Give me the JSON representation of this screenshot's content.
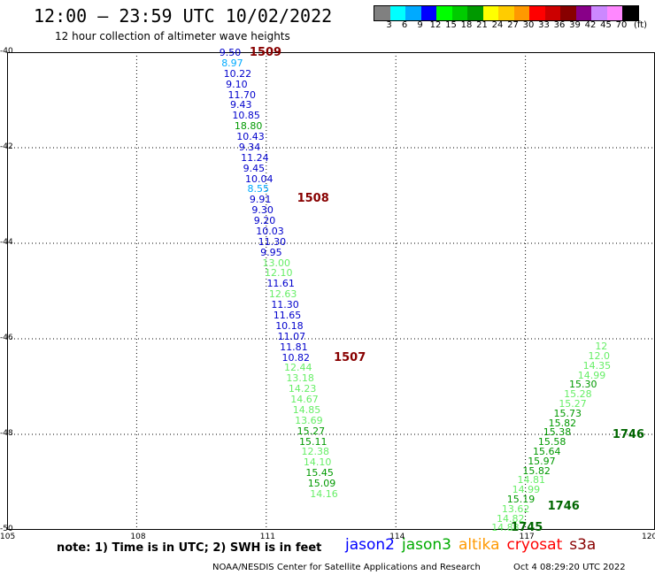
{
  "header": {
    "title": "12:00 — 23:59 UTC 10/02/2022",
    "subtitle": "12 hour collection of altimeter wave heights"
  },
  "legend": {
    "colors": [
      "#808080",
      "#00ffff",
      "#00aaff",
      "#0000ff",
      "#00ff00",
      "#00cc00",
      "#009900",
      "#ffff00",
      "#ffcc00",
      "#ff9900",
      "#ff0000",
      "#cc0000",
      "#880000",
      "#880088",
      "#cc88ff",
      "#ff88ff",
      "#000000"
    ],
    "labels": [
      "3",
      "6",
      "9",
      "12",
      "15",
      "18",
      "21",
      "24",
      "27",
      "30",
      "33",
      "36",
      "39",
      "42",
      "45",
      "70",
      "(ft)"
    ]
  },
  "map": {
    "lon_range": [
      105,
      120
    ],
    "lat_range": [
      -50,
      -40
    ],
    "lon_labels": [
      "105",
      "108",
      "111",
      "114",
      "117",
      "120"
    ],
    "lat_labels": [
      "-40",
      "-42",
      "-44",
      "-46",
      "-48",
      "-50"
    ]
  },
  "tracks": [
    {
      "pass_label": "1509",
      "pass_color": "#880000",
      "pass_lon": 110.9,
      "pass_lat": -40.0,
      "points": [
        {
          "v": "9.50",
          "lon": 110.2,
          "lat": -40.0,
          "c": "#0000cc"
        },
        {
          "v": "8.97",
          "lon": 110.25,
          "lat": -40.22,
          "c": "#00aaff"
        },
        {
          "v": "10.22",
          "lon": 110.3,
          "lat": -40.44,
          "c": "#0000cc"
        },
        {
          "v": "9.10",
          "lon": 110.35,
          "lat": -40.66,
          "c": "#0000cc"
        },
        {
          "v": "11.70",
          "lon": 110.4,
          "lat": -40.88,
          "c": "#0000cc"
        },
        {
          "v": "9.43",
          "lon": 110.45,
          "lat": -41.1,
          "c": "#0000cc"
        },
        {
          "v": "10.85",
          "lon": 110.5,
          "lat": -41.32,
          "c": "#0000cc"
        },
        {
          "v": "18.80",
          "lon": 110.55,
          "lat": -41.54,
          "c": "#009900"
        },
        {
          "v": "10.43",
          "lon": 110.6,
          "lat": -41.76,
          "c": "#0000cc"
        },
        {
          "v": "9.34",
          "lon": 110.65,
          "lat": -41.98,
          "c": "#0000cc"
        },
        {
          "v": "11.24",
          "lon": 110.7,
          "lat": -42.2,
          "c": "#0000cc"
        },
        {
          "v": "9.45",
          "lon": 110.75,
          "lat": -42.42,
          "c": "#0000cc"
        },
        {
          "v": "10.04",
          "lon": 110.8,
          "lat": -42.64,
          "c": "#0000cc"
        },
        {
          "v": "8.55",
          "lon": 110.85,
          "lat": -42.86,
          "c": "#00aaff"
        },
        {
          "v": "9.91",
          "lon": 110.9,
          "lat": -43.08,
          "c": "#0000cc"
        }
      ]
    },
    {
      "pass_label": "1508",
      "pass_color": "#880000",
      "pass_lon": 112.0,
      "pass_lat": -43.06,
      "points": [
        {
          "v": "9.30",
          "lon": 110.95,
          "lat": -43.3,
          "c": "#0000cc"
        },
        {
          "v": "9.20",
          "lon": 111.0,
          "lat": -43.52,
          "c": "#0000cc"
        },
        {
          "v": "10.03",
          "lon": 111.05,
          "lat": -43.74,
          "c": "#0000cc"
        },
        {
          "v": "11.30",
          "lon": 111.1,
          "lat": -43.96,
          "c": "#0000cc"
        },
        {
          "v": "9.95",
          "lon": 111.15,
          "lat": -44.18,
          "c": "#0000cc"
        },
        {
          "v": "13.00",
          "lon": 111.2,
          "lat": -44.4,
          "c": "#66ee66"
        },
        {
          "v": "12.10",
          "lon": 111.25,
          "lat": -44.62,
          "c": "#66ee66"
        },
        {
          "v": "11.61",
          "lon": 111.3,
          "lat": -44.84,
          "c": "#0000cc"
        },
        {
          "v": "12.63",
          "lon": 111.35,
          "lat": -45.06,
          "c": "#66ee66"
        },
        {
          "v": "11.30",
          "lon": 111.4,
          "lat": -45.28,
          "c": "#0000cc"
        },
        {
          "v": "11.65",
          "lon": 111.45,
          "lat": -45.5,
          "c": "#0000cc"
        },
        {
          "v": "10.18",
          "lon": 111.5,
          "lat": -45.72,
          "c": "#0000cc"
        },
        {
          "v": "11.07",
          "lon": 111.55,
          "lat": -45.94,
          "c": "#0000cc"
        },
        {
          "v": "11.81",
          "lon": 111.6,
          "lat": -46.16,
          "c": "#0000cc"
        },
        {
          "v": "10.82",
          "lon": 111.65,
          "lat": -46.38,
          "c": "#0000cc"
        }
      ]
    },
    {
      "pass_label": "1507",
      "pass_color": "#880000",
      "pass_lon": 112.85,
      "pass_lat": -46.38,
      "points": [
        {
          "v": "12.44",
          "lon": 111.7,
          "lat": -46.6,
          "c": "#66ee66"
        },
        {
          "v": "13.18",
          "lon": 111.75,
          "lat": -46.82,
          "c": "#66ee66"
        },
        {
          "v": "14.23",
          "lon": 111.8,
          "lat": -47.04,
          "c": "#66ee66"
        },
        {
          "v": "14.67",
          "lon": 111.85,
          "lat": -47.26,
          "c": "#66ee66"
        },
        {
          "v": "14.85",
          "lon": 111.9,
          "lat": -47.48,
          "c": "#66ee66"
        },
        {
          "v": "13.69",
          "lon": 111.95,
          "lat": -47.7,
          "c": "#66ee66"
        },
        {
          "v": "15.27",
          "lon": 112.0,
          "lat": -47.92,
          "c": "#009900"
        },
        {
          "v": "15.11",
          "lon": 112.05,
          "lat": -48.14,
          "c": "#009900"
        },
        {
          "v": "12.38",
          "lon": 112.1,
          "lat": -48.36,
          "c": "#66ee66"
        },
        {
          "v": "14.10",
          "lon": 112.15,
          "lat": -48.58,
          "c": "#66ee66"
        },
        {
          "v": "15.45",
          "lon": 112.2,
          "lat": -48.8,
          "c": "#009900"
        },
        {
          "v": "15.09",
          "lon": 112.25,
          "lat": -49.02,
          "c": "#009900"
        },
        {
          "v": "14.16",
          "lon": 112.3,
          "lat": -49.24,
          "c": "#66ee66"
        }
      ]
    },
    {
      "pass_label": "1745",
      "pass_color": "#006600",
      "pass_lon": 116.95,
      "pass_lat": -49.95,
      "points": [
        {
          "v": "14.88",
          "lon": 116.5,
          "lat": -49.95,
          "c": "#66ee66"
        },
        {
          "v": "14.82",
          "lon": 116.62,
          "lat": -49.75,
          "c": "#66ee66"
        },
        {
          "v": "13.62",
          "lon": 116.74,
          "lat": -49.55,
          "c": "#66ee66"
        },
        {
          "v": "15.19",
          "lon": 116.86,
          "lat": -49.35,
          "c": "#009900"
        },
        {
          "v": "14.99",
          "lon": 116.98,
          "lat": -49.15,
          "c": "#66ee66"
        },
        {
          "v": "14.81",
          "lon": 117.1,
          "lat": -48.95,
          "c": "#66ee66"
        },
        {
          "v": "15.82",
          "lon": 117.22,
          "lat": -48.75,
          "c": "#009900"
        },
        {
          "v": "15.97",
          "lon": 117.34,
          "lat": -48.55,
          "c": "#009900"
        },
        {
          "v": "15.64",
          "lon": 117.46,
          "lat": -48.35,
          "c": "#009900"
        },
        {
          "v": "15.58",
          "lon": 117.58,
          "lat": -48.15,
          "c": "#009900"
        },
        {
          "v": "15.38",
          "lon": 117.7,
          "lat": -47.95,
          "c": "#009900"
        }
      ]
    },
    {
      "pass_label": "1746",
      "pass_color": "#006600",
      "pass_lon": 117.8,
      "pass_lat": -49.5,
      "points": []
    },
    {
      "pass_label": "1746",
      "pass_color": "#006600",
      "pass_lon": 119.3,
      "pass_lat": -48.0,
      "points": [
        {
          "v": "15.82",
          "lon": 117.82,
          "lat": -47.75,
          "c": "#009900"
        },
        {
          "v": "15.73",
          "lon": 117.94,
          "lat": -47.55,
          "c": "#009900"
        },
        {
          "v": "15.27",
          "lon": 118.06,
          "lat": -47.35,
          "c": "#66ee66"
        },
        {
          "v": "15.28",
          "lon": 118.18,
          "lat": -47.15,
          "c": "#66ee66"
        },
        {
          "v": "15.30",
          "lon": 118.3,
          "lat": -46.95,
          "c": "#009900"
        },
        {
          "v": "14.99",
          "lon": 118.5,
          "lat": -46.75,
          "c": "#66ee66"
        },
        {
          "v": "14.35",
          "lon": 118.62,
          "lat": -46.55,
          "c": "#66ee66"
        },
        {
          "v": "12.0",
          "lon": 118.74,
          "lat": -46.35,
          "c": "#66ee66"
        },
        {
          "v": "12",
          "lon": 118.9,
          "lat": -46.15,
          "c": "#66ee66"
        }
      ]
    }
  ],
  "footer": {
    "note": "note:  1) Time is in UTC;  2) SWH is in feet",
    "satellites": [
      {
        "name": "jason2",
        "color": "#0000ff"
      },
      {
        "name": "jason3",
        "color": "#00aa00"
      },
      {
        "name": "altika",
        "color": "#ff9900"
      },
      {
        "name": "cryosat",
        "color": "#ff0000"
      },
      {
        "name": "s3a",
        "color": "#880000"
      }
    ],
    "credit": "NOAA/NESDIS Center for Satellite Applications and Research",
    "timestamp": "Oct  4 08:29:20 UTC 2022"
  }
}
